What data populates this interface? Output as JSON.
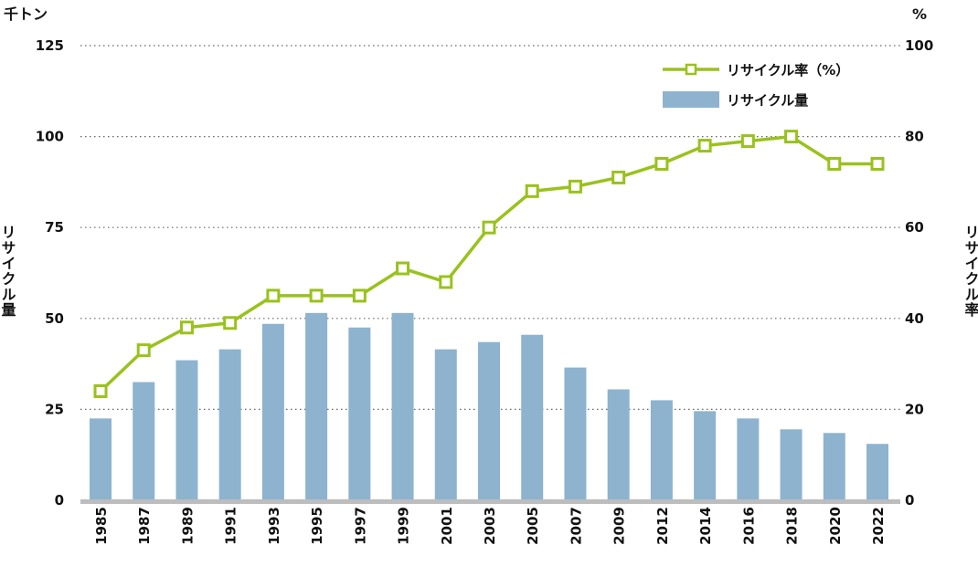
{
  "chart_data": {
    "type": "bar+line",
    "categories": [
      "1985",
      "1987",
      "1989",
      "1991",
      "1993",
      "1995",
      "1997",
      "1999",
      "2001",
      "2003",
      "2005",
      "2007",
      "2009",
      "2012",
      "2014",
      "2016",
      "2018",
      "2020",
      "2022"
    ],
    "series": [
      {
        "name": "リサイクル量",
        "type": "bar",
        "axis": "left",
        "color": "#8db3cf",
        "values": [
          22.5,
          32.5,
          38.5,
          41.5,
          48.5,
          51.5,
          47.5,
          51.5,
          41.5,
          43.5,
          45.5,
          36.5,
          30.5,
          27.5,
          24.5,
          22.5,
          19.5,
          18.5,
          15.5
        ]
      },
      {
        "name": "リサイクル率（%）",
        "type": "line",
        "axis": "right",
        "color": "#99c21c",
        "values": [
          24,
          33,
          38,
          39,
          45,
          45,
          45,
          51,
          48,
          60,
          68,
          69,
          71,
          74,
          78,
          79,
          80,
          74,
          74
        ]
      }
    ],
    "y_left": {
      "unit": "千トン",
      "label": "リサイクル量",
      "ylim": [
        0,
        125
      ],
      "ticks": [
        "0",
        "25",
        "50",
        "75",
        "100",
        "125"
      ]
    },
    "y_right": {
      "unit": "%",
      "label": "リサイクル率",
      "ylim": [
        0,
        100
      ],
      "ticks": [
        "0",
        "20",
        "40",
        "60",
        "80",
        "100"
      ]
    },
    "grid": "dotted horizontal",
    "legend_position": "top-right"
  }
}
